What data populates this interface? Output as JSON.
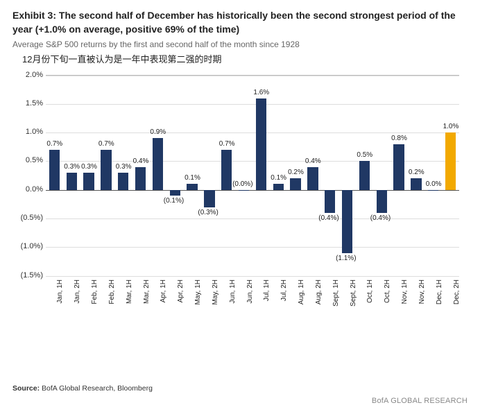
{
  "header": {
    "exhibit_label": "Exhibit 3:",
    "title_rest": " The second half of December has historically been the second strongest period of the year (+1.0% on average, positive 69% of the time)",
    "subtitle": "Average S&P 500 returns by the first and second half of the month since 1928",
    "cn_annotation": "12月份下旬一直被认为是一年中表现第二强的时期"
  },
  "chart": {
    "type": "bar",
    "ylim": [
      -1.5,
      2.0
    ],
    "yticks": [
      {
        "v": 2.0,
        "label": "2.0%"
      },
      {
        "v": 1.5,
        "label": "1.5%"
      },
      {
        "v": 1.0,
        "label": "1.0%"
      },
      {
        "v": 0.5,
        "label": "0.5%"
      },
      {
        "v": 0.0,
        "label": "0.0%"
      },
      {
        "v": -0.5,
        "label": "(0.5%)"
      },
      {
        "v": -1.0,
        "label": "(1.0%)"
      },
      {
        "v": -1.5,
        "label": "(1.5%)"
      }
    ],
    "bar_color_default": "#203864",
    "bar_color_highlight": "#f2a900",
    "grid_color": "#dddddd",
    "zero_color": "#555555",
    "background": "#ffffff",
    "label_fontsize": 10,
    "axis_fontsize": 11,
    "bar_width_ratio": 0.62,
    "series": [
      {
        "label": "Jan, 1H",
        "value": 0.7,
        "text": "0.7%"
      },
      {
        "label": "Jan, 2H",
        "value": 0.3,
        "text": "0.3%"
      },
      {
        "label": "Feb, 1H",
        "value": 0.3,
        "text": "0.3%"
      },
      {
        "label": "Feb, 2H",
        "value": 0.7,
        "text": "0.7%"
      },
      {
        "label": "Mar, 1H",
        "value": 0.3,
        "text": "0.3%"
      },
      {
        "label": "Mar, 2H",
        "value": 0.4,
        "text": "0.4%"
      },
      {
        "label": "Apr, 1H",
        "value": 0.9,
        "text": "0.9%"
      },
      {
        "label": "Apr, 2H",
        "value": -0.1,
        "text": "(0.1%)"
      },
      {
        "label": "May, 1H",
        "value": 0.1,
        "text": "0.1%"
      },
      {
        "label": "May, 2H",
        "value": -0.3,
        "text": "(0.3%)"
      },
      {
        "label": "Jun, 1H",
        "value": 0.7,
        "text": "0.7%"
      },
      {
        "label": "Jun, 2H",
        "value": 0.0,
        "text": "(0.0%)"
      },
      {
        "label": "Jul, 1H",
        "value": 1.6,
        "text": "1.6%"
      },
      {
        "label": "Jul, 2H",
        "value": 0.1,
        "text": "0.1%"
      },
      {
        "label": "Aug, 1H",
        "value": 0.2,
        "text": "0.2%"
      },
      {
        "label": "Aug, 2H",
        "value": 0.4,
        "text": "0.4%"
      },
      {
        "label": "Sept, 1H",
        "value": -0.4,
        "text": "(0.4%)"
      },
      {
        "label": "Sept, 2H",
        "value": -1.1,
        "text": "(1.1%)"
      },
      {
        "label": "Oct, 1H",
        "value": 0.5,
        "text": "0.5%"
      },
      {
        "label": "Oct, 2H",
        "value": -0.4,
        "text": "(0.4%)"
      },
      {
        "label": "Nov, 1H",
        "value": 0.8,
        "text": "0.8%"
      },
      {
        "label": "Nov, 2H",
        "value": 0.2,
        "text": "0.2%"
      },
      {
        "label": "Dec, 1H",
        "value": 0.0,
        "text": "0.0%"
      },
      {
        "label": "Dec, 2H",
        "value": 1.0,
        "text": "1.0%",
        "highlight": true
      }
    ]
  },
  "footer": {
    "source_prefix": "Source:",
    "source_text": " BofA Global Research, Bloomberg",
    "brand": "BofA GLOBAL RESEARCH"
  }
}
